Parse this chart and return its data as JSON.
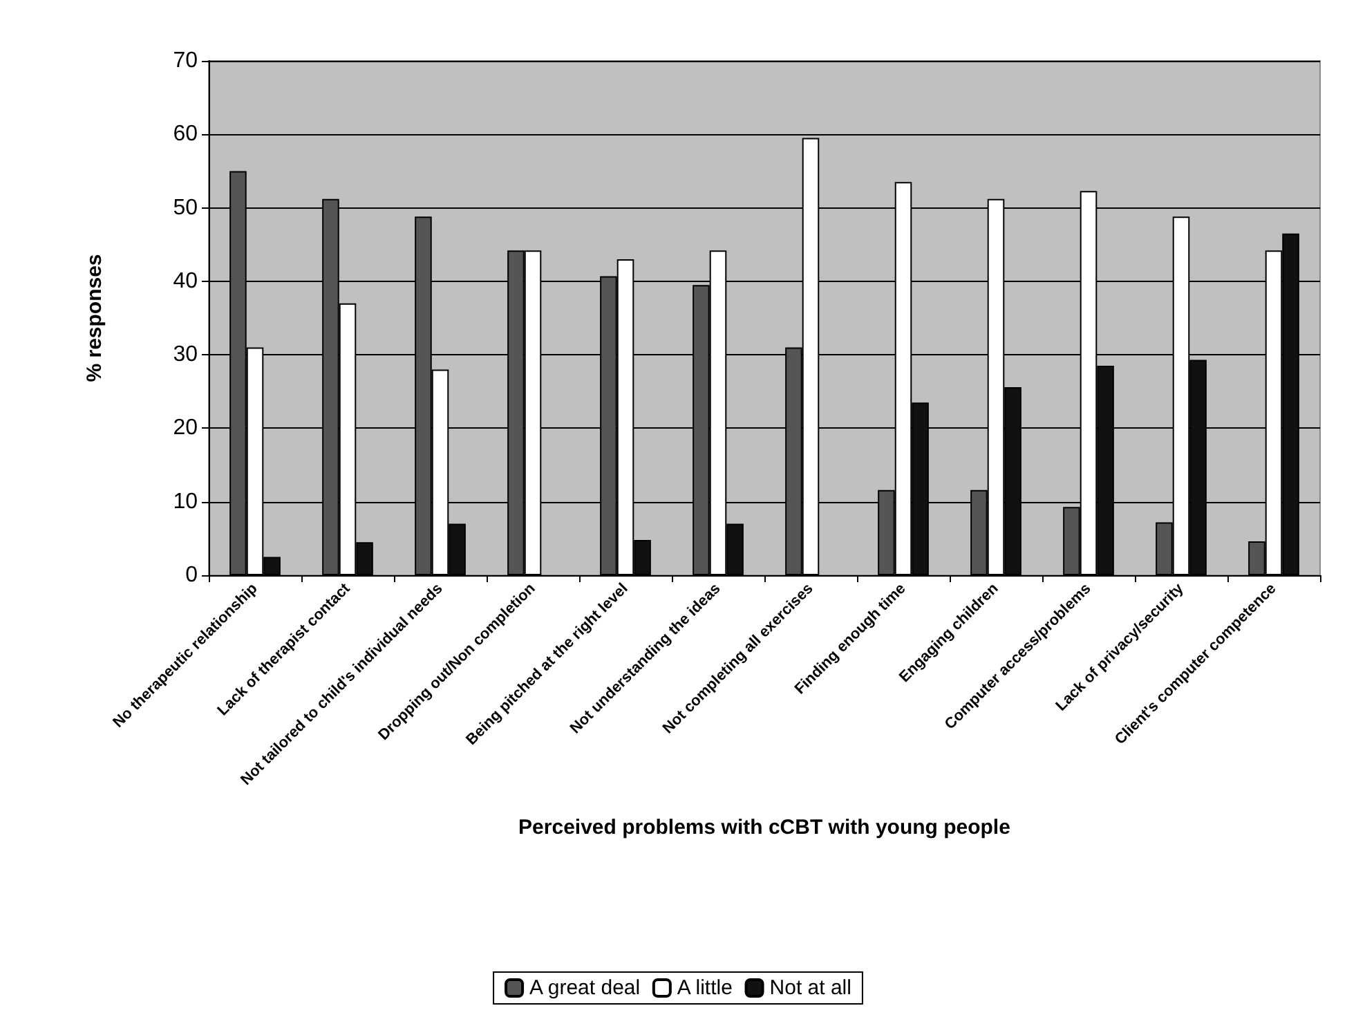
{
  "chart_data": {
    "type": "bar",
    "xlabel": "Perceived problems with cCBT with young people",
    "ylabel": "% responses",
    "categories": [
      "No therapeutic relationship",
      "Lack of therapist contact",
      "Not tailored to child's individual needs",
      "Dropping out/Non completion",
      "Being pitched at the right level",
      "Not understanding the ideas",
      "Not completing all exercises",
      "Finding enough time",
      "Engaging children",
      "Computer access/problems",
      "Lack of privacy/security",
      "Client's computer competence"
    ],
    "series": [
      {
        "name": "A great deal",
        "color": "#555555",
        "values": [
          55,
          51.2,
          48.8,
          44.2,
          40.7,
          39.5,
          31,
          11.6,
          11.6,
          9.3,
          7.2,
          4.6
        ]
      },
      {
        "name": "A little",
        "color": "#ffffff",
        "values": [
          31,
          37,
          28,
          44.2,
          43,
          44.2,
          59.5,
          53.5,
          51.2,
          52.3,
          48.8,
          44.2
        ]
      },
      {
        "name": "Not at all",
        "color": "#111111",
        "values": [
          2.5,
          4.5,
          7,
          null,
          4.8,
          7,
          null,
          23.5,
          25.6,
          28.5,
          29.3,
          46.5
        ]
      }
    ],
    "ylim": [
      0,
      70
    ],
    "yticks": [
      0,
      10,
      20,
      30,
      40,
      50,
      60,
      70
    ],
    "grid": "y",
    "legend": "bottom"
  }
}
